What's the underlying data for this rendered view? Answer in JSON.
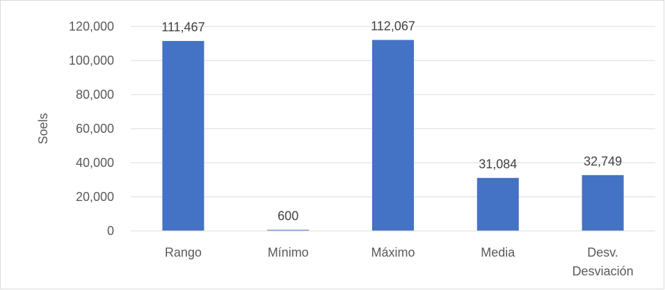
{
  "chart_data": {
    "type": "bar",
    "categories": [
      "Rango",
      "Mínimo",
      "Máximo",
      "Media",
      "Desv. Desviación"
    ],
    "category_lines": [
      [
        "Rango"
      ],
      [
        "Mínimo"
      ],
      [
        "Máximo"
      ],
      [
        "Media"
      ],
      [
        "Desv.",
        "Desviación"
      ]
    ],
    "values": [
      111467,
      600,
      112067,
      31084,
      32749
    ],
    "data_labels": [
      "111,467",
      "600",
      "112,067",
      "31,084",
      "32,749"
    ],
    "ylabel": "Soels",
    "xlabel": "",
    "title": "",
    "ylim": [
      0,
      120000
    ],
    "yticks": [
      0,
      20000,
      40000,
      60000,
      80000,
      100000,
      120000
    ],
    "ytick_labels": [
      "0",
      "20,000",
      "40,000",
      "60,000",
      "80,000",
      "100,000",
      "120,000"
    ],
    "grid": true,
    "legend": "none",
    "colors": {
      "bar": "#4472c4",
      "grid": "#d9d9d9",
      "axis": "#d9d9d9"
    }
  }
}
